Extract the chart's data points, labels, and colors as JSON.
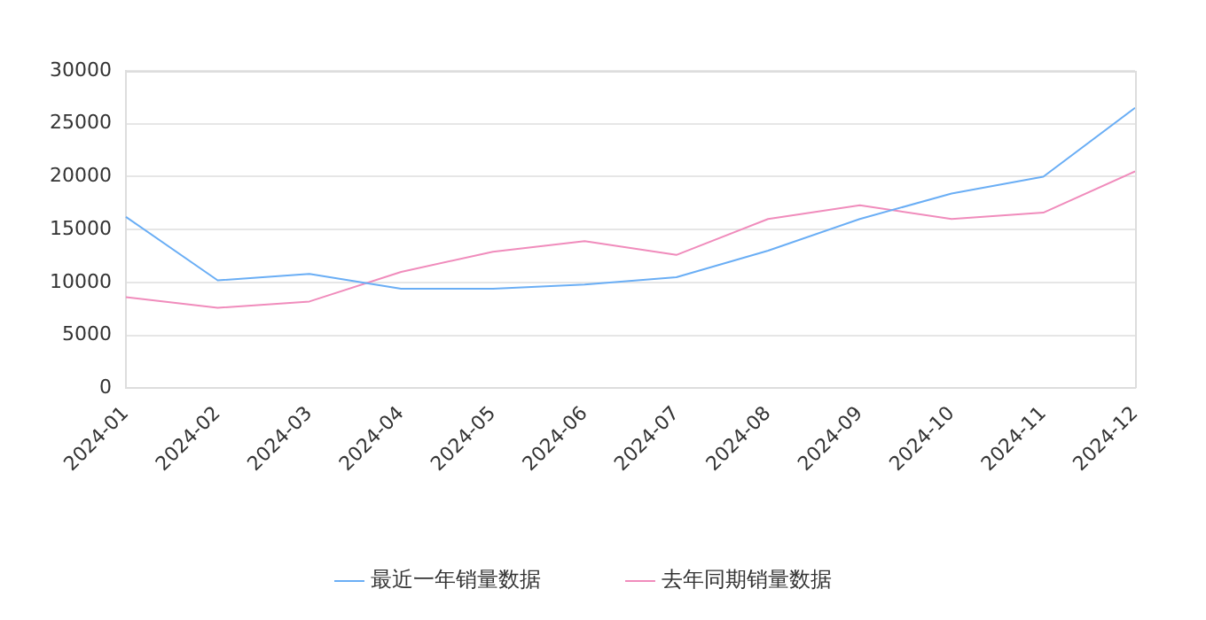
{
  "chart_data": {
    "type": "line",
    "categories": [
      "2024-01",
      "2024-02",
      "2024-03",
      "2024-04",
      "2024-05",
      "2024-06",
      "2024-07",
      "2024-08",
      "2024-09",
      "2024-10",
      "2024-11",
      "2024-12"
    ],
    "series": [
      {
        "name": "最近一年销量数据",
        "color": "#6aaef5",
        "values": [
          16200,
          10200,
          10800,
          9400,
          9400,
          9800,
          10500,
          13000,
          16000,
          18400,
          20000,
          26500
        ]
      },
      {
        "name": "去年同期销量数据",
        "color": "#f08cbc",
        "values": [
          8600,
          7600,
          8200,
          11000,
          12900,
          13900,
          12600,
          16000,
          17300,
          16000,
          16600,
          20500
        ]
      }
    ],
    "ylim": [
      0,
      30000
    ],
    "yticks": [
      0,
      5000,
      10000,
      15000,
      20000,
      25000,
      30000
    ],
    "grid": "y",
    "legend": "bottom",
    "marker": "none",
    "line_style": "solid"
  }
}
